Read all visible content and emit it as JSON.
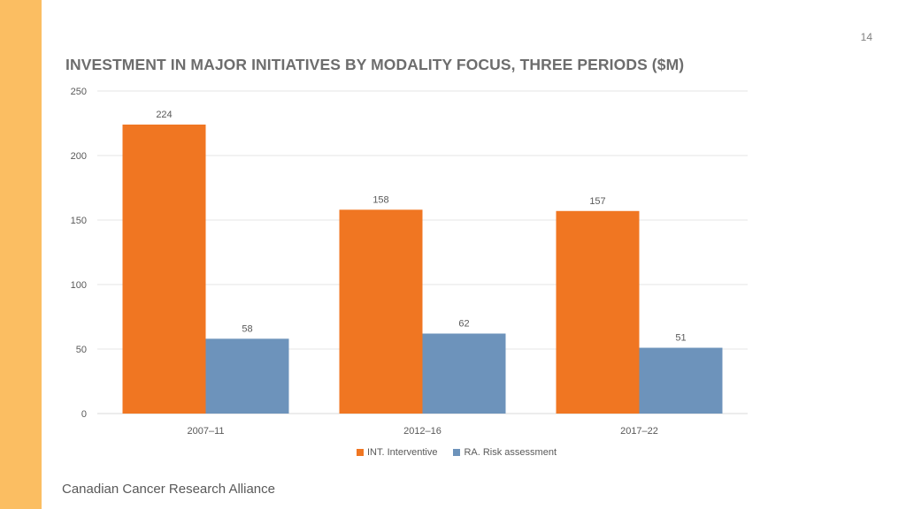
{
  "page": {
    "number": "14",
    "title": "INVESTMENT IN MAJOR INITIATIVES BY MODALITY FOCUS, THREE PERIODS ($M)",
    "footer": "Canadian Cancer Research Alliance",
    "accent_color": "#fbbe62"
  },
  "chart_data": {
    "type": "bar",
    "title": "INVESTMENT IN MAJOR INITIATIVES BY MODALITY FOCUS, THREE PERIODS ($M)",
    "xlabel": "",
    "ylabel": "",
    "categories": [
      "2007–11",
      "2012–16",
      "2017–22"
    ],
    "series": [
      {
        "name": "INT. Interventive",
        "values": [
          224,
          158,
          157
        ],
        "color": "#f07622"
      },
      {
        "name": "RA. Risk assessment",
        "values": [
          58,
          62,
          51
        ],
        "color": "#6d93bb"
      }
    ],
    "ylim": [
      0,
      250
    ],
    "yticks": [
      0,
      50,
      100,
      150,
      200,
      250
    ],
    "grid": true,
    "data_labels": true,
    "legend_position": "bottom"
  }
}
